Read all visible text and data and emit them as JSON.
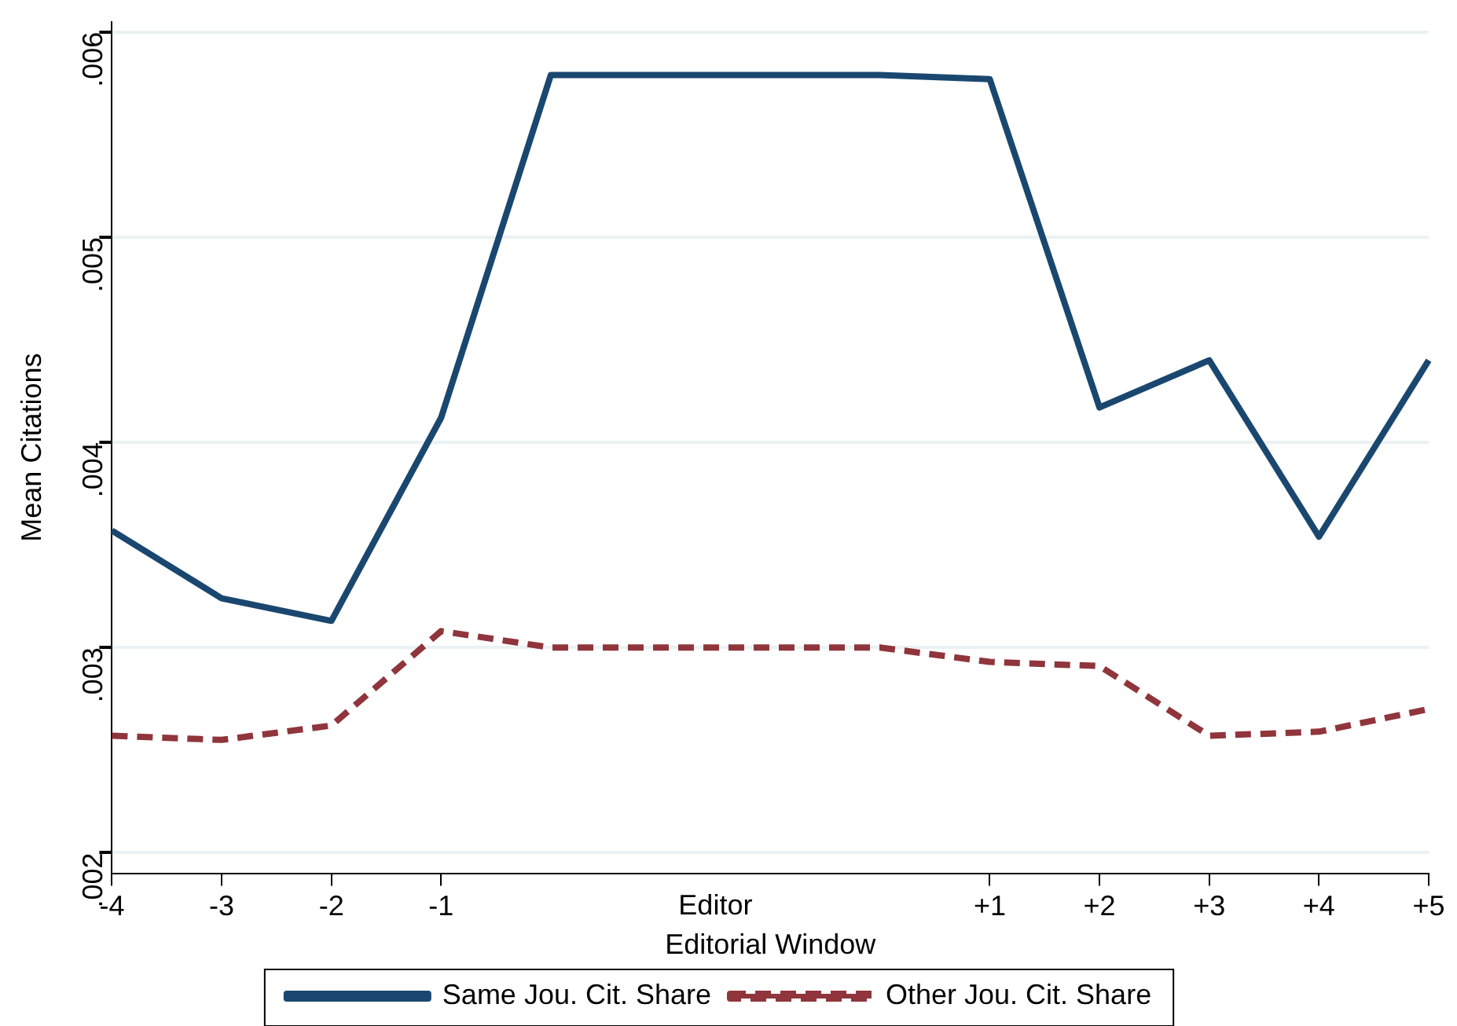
{
  "chart_data": {
    "type": "line",
    "xlabel": "Editorial Window",
    "ylabel": "Mean Citations",
    "categories": [
      "-4",
      "-3",
      "-2",
      "-1",
      null,
      null,
      null,
      null,
      "+1",
      "+2",
      "+3",
      "+4",
      "+5"
    ],
    "annotations": [
      "Editor"
    ],
    "ylim": [
      0.0019,
      0.00605
    ],
    "yticks": [
      {
        "value": 0.002,
        "label": ".002"
      },
      {
        "value": 0.003,
        "label": ".003"
      },
      {
        "value": 0.004,
        "label": ".004"
      },
      {
        "value": 0.005,
        "label": ".005"
      },
      {
        "value": 0.006,
        "label": ".006"
      }
    ],
    "grid": "y",
    "legend": "bottom",
    "marker": "none",
    "series": [
      {
        "name": "Same Jou. Cit. Share",
        "color": "#1a476f",
        "line_style": "solid",
        "values": [
          0.00357,
          0.00324,
          0.00313,
          0.00412,
          0.00579,
          0.00579,
          0.00579,
          0.00579,
          0.00577,
          0.00417,
          0.0044,
          0.00354,
          0.0044
        ]
      },
      {
        "name": "Other Jou. Cit. Share",
        "color": "#90353b",
        "line_style": "dashed",
        "values": [
          0.00257,
          0.00255,
          0.00262,
          0.00308,
          0.003,
          0.003,
          0.003,
          0.003,
          0.00293,
          0.00291,
          0.00257,
          0.00259,
          0.0027
        ]
      }
    ]
  }
}
